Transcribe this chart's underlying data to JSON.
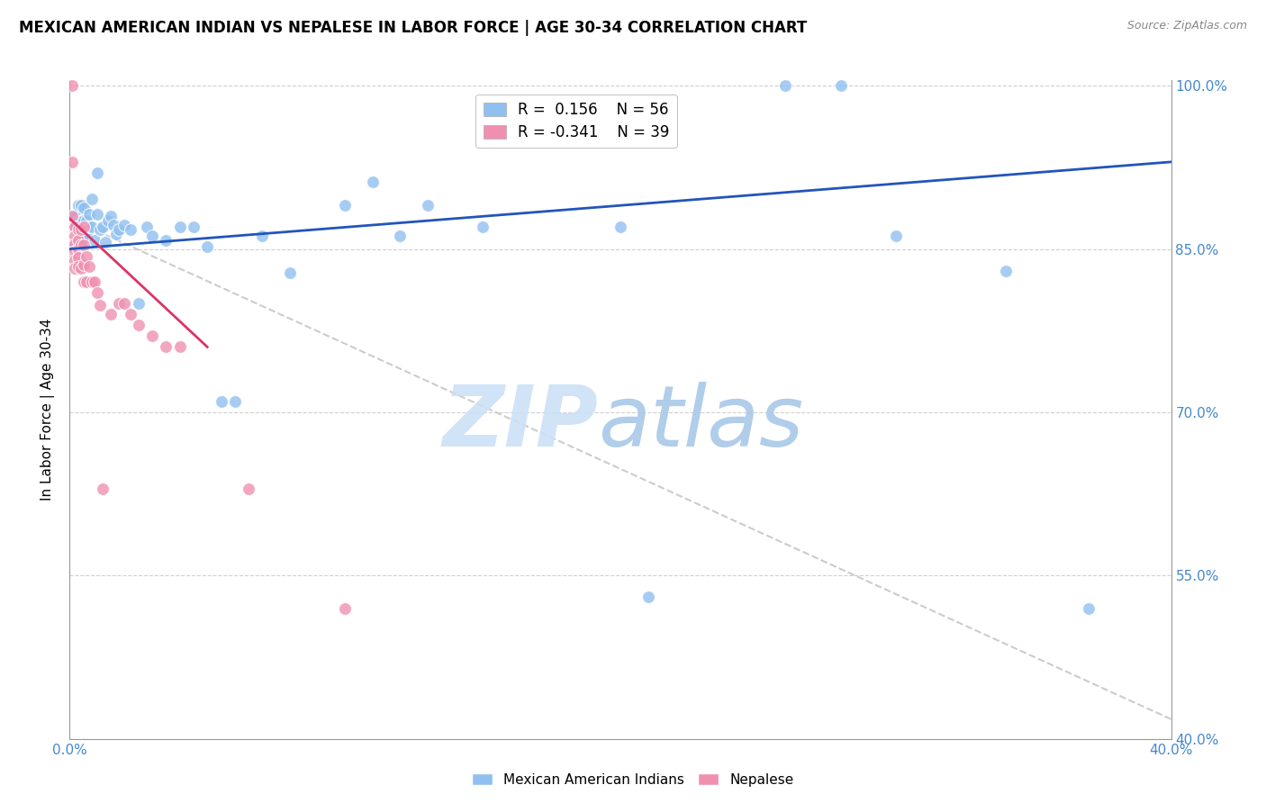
{
  "title": "MEXICAN AMERICAN INDIAN VS NEPALESE IN LABOR FORCE | AGE 30-34 CORRELATION CHART",
  "source": "Source: ZipAtlas.com",
  "ylabel": "In Labor Force | Age 30-34",
  "xlim": [
    0.0,
    0.4
  ],
  "ylim": [
    0.4,
    1.005
  ],
  "yticks": [
    0.4,
    0.55,
    0.7,
    0.85,
    1.0
  ],
  "ytick_labels": [
    "40.0%",
    "55.0%",
    "70.0%",
    "85.0%",
    "100.0%"
  ],
  "xticks": [
    0.0,
    0.05,
    0.1,
    0.15,
    0.2,
    0.25,
    0.3,
    0.35,
    0.4
  ],
  "xtick_labels": [
    "0.0%",
    "",
    "",
    "",
    "",
    "",
    "",
    "",
    "40.0%"
  ],
  "grid_color": "#d0d0d0",
  "blue_color": "#90c0f0",
  "pink_color": "#f090b0",
  "trend_blue": "#2255bb",
  "trend_pink": "#dd3366",
  "trend_gray": "#cccccc",
  "axis_color": "#4488cc",
  "legend_R_blue": "0.156",
  "legend_N_blue": "56",
  "legend_R_pink": "-0.341",
  "legend_N_pink": "39",
  "blue_points_x": [
    0.001,
    0.001,
    0.002,
    0.002,
    0.002,
    0.003,
    0.003,
    0.003,
    0.004,
    0.004,
    0.004,
    0.005,
    0.005,
    0.005,
    0.006,
    0.006,
    0.007,
    0.007,
    0.008,
    0.008,
    0.009,
    0.01,
    0.01,
    0.011,
    0.012,
    0.013,
    0.014,
    0.015,
    0.016,
    0.017,
    0.018,
    0.02,
    0.022,
    0.025,
    0.028,
    0.03,
    0.035,
    0.04,
    0.045,
    0.05,
    0.055,
    0.06,
    0.07,
    0.08,
    0.1,
    0.11,
    0.12,
    0.13,
    0.15,
    0.2,
    0.21,
    0.26,
    0.28,
    0.3,
    0.34,
    0.37
  ],
  "blue_points_y": [
    0.87,
    0.88,
    0.855,
    0.87,
    0.88,
    0.858,
    0.875,
    0.89,
    0.858,
    0.875,
    0.89,
    0.862,
    0.876,
    0.888,
    0.862,
    0.876,
    0.87,
    0.882,
    0.896,
    0.87,
    0.858,
    0.882,
    0.92,
    0.868,
    0.87,
    0.856,
    0.876,
    0.88,
    0.872,
    0.864,
    0.868,
    0.872,
    0.868,
    0.8,
    0.87,
    0.862,
    0.858,
    0.87,
    0.87,
    0.852,
    0.71,
    0.71,
    0.862,
    0.828,
    0.89,
    0.912,
    0.862,
    0.89,
    0.87,
    0.87,
    0.53,
    1.0,
    1.0,
    0.862,
    0.83,
    0.52
  ],
  "pink_points_x": [
    0.001,
    0.001,
    0.001,
    0.002,
    0.002,
    0.002,
    0.002,
    0.002,
    0.002,
    0.003,
    0.003,
    0.003,
    0.003,
    0.003,
    0.004,
    0.004,
    0.004,
    0.005,
    0.005,
    0.005,
    0.005,
    0.006,
    0.006,
    0.007,
    0.008,
    0.009,
    0.01,
    0.011,
    0.012,
    0.015,
    0.018,
    0.02,
    0.022,
    0.025,
    0.03,
    0.035,
    0.04,
    0.065,
    0.1
  ],
  "pink_points_y": [
    1.0,
    0.93,
    0.88,
    0.87,
    0.862,
    0.855,
    0.848,
    0.84,
    0.832,
    0.868,
    0.858,
    0.85,
    0.842,
    0.834,
    0.868,
    0.854,
    0.832,
    0.87,
    0.854,
    0.836,
    0.82,
    0.843,
    0.82,
    0.834,
    0.82,
    0.82,
    0.81,
    0.798,
    0.63,
    0.79,
    0.8,
    0.8,
    0.79,
    0.78,
    0.77,
    0.76,
    0.76,
    0.63,
    0.52
  ],
  "blue_trend_x": [
    0.0,
    0.4
  ],
  "blue_trend_y": [
    0.85,
    0.93
  ],
  "pink_trend_x": [
    0.0,
    0.05
  ],
  "pink_trend_y": [
    0.878,
    0.76
  ],
  "gray_trend_x": [
    0.0,
    0.4
  ],
  "gray_trend_y": [
    0.878,
    0.418
  ]
}
